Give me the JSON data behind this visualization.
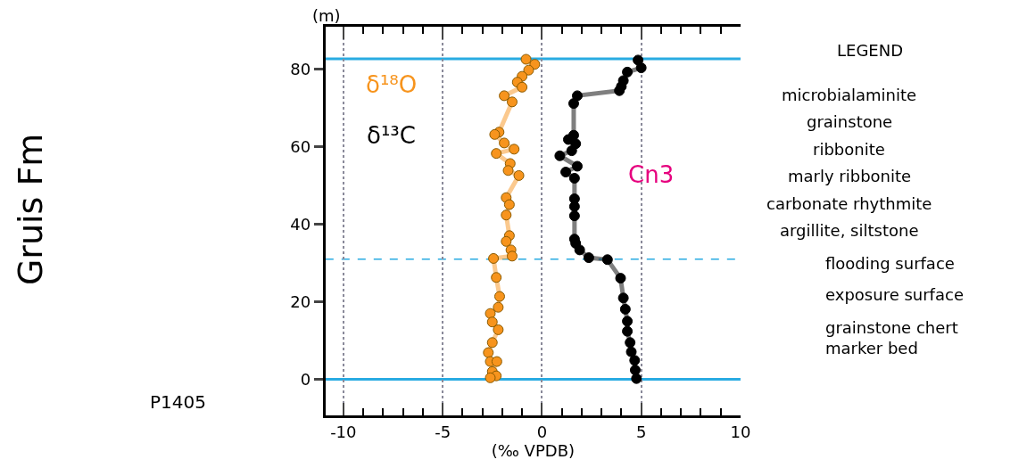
{
  "chart_data": {
    "type": "line",
    "xlabel": "(‰ VPDB)",
    "ylabel": "(m)",
    "xlim": [
      -10.9,
      10
    ],
    "ylim": [
      -9.3,
      91
    ],
    "xticks": [
      -10,
      -5,
      0,
      5,
      10
    ],
    "yticks": [
      0,
      20,
      40,
      60,
      80
    ],
    "grid": "x",
    "marker": "circle",
    "line_style": "solid",
    "series": [
      {
        "name": "δ¹⁸O",
        "color": "#f7941d",
        "x": [
          -0.8,
          -0.36,
          -0.67,
          -1.0,
          -1.24,
          -1.0,
          -1.9,
          -1.5,
          -2.16,
          -2.38,
          -1.9,
          -1.4,
          -2.3,
          -1.6,
          -1.7,
          -1.16,
          -1.8,
          -1.64,
          -1.8,
          -1.64,
          -1.8,
          -1.56,
          -1.5,
          -2.44,
          -2.3,
          -2.13,
          -2.2,
          -2.6,
          -2.5,
          -2.2,
          -2.5,
          -2.7,
          -2.6,
          -2.27,
          -2.5,
          -2.3,
          -2.6
        ],
        "values": [
          82.6,
          81.3,
          79.8,
          78.2,
          76.7,
          75.4,
          73.2,
          71.6,
          63.8,
          63.2,
          61,
          59.4,
          58.3,
          55.7,
          53.9,
          52.6,
          46.9,
          45.1,
          42.4,
          37.1,
          35.6,
          33.4,
          31.8,
          31.2,
          26.3,
          21.4,
          18.6,
          17.0,
          14.8,
          12.8,
          9.5,
          6.9,
          4.6,
          4.6,
          2.0,
          0.9,
          0.4
        ]
      },
      {
        "name": "δ¹³C",
        "color": "#000000",
        "x": [
          4.84,
          5.0,
          4.3,
          4.1,
          4.0,
          3.9,
          1.78,
          1.6,
          1.6,
          1.33,
          1.7,
          1.5,
          0.9,
          1.78,
          1.2,
          1.64,
          1.64,
          1.64,
          1.64,
          1.64,
          1.7,
          1.9,
          2.36,
          3.3,
          3.96,
          4.1,
          4.2,
          4.3,
          4.3,
          4.44,
          4.5,
          4.67,
          4.7,
          4.76
        ],
        "values": [
          82.4,
          80.4,
          79.3,
          77.1,
          75.6,
          74.5,
          73.2,
          71.2,
          63.0,
          61.9,
          60.8,
          59.0,
          57.7,
          55.0,
          53.5,
          51.9,
          46.6,
          44.6,
          42.2,
          36.2,
          35.1,
          33.4,
          31.4,
          30.9,
          26.1,
          21.0,
          18.1,
          15.0,
          12.4,
          9.5,
          7.1,
          4.9,
          2.4,
          0.2
        ]
      }
    ],
    "ref_lines": [
      {
        "axis": "y",
        "value": 0,
        "color": "#29abe2",
        "line_style": "solid"
      },
      {
        "axis": "y",
        "value": 82.7,
        "color": "#29abe2",
        "line_style": "solid"
      },
      {
        "axis": "y",
        "value": 31,
        "color": "#29abe2",
        "line_style": "dashed"
      }
    ],
    "annotations": [
      "Cn3",
      "Gruis Fm",
      "P1405",
      "LEGEND",
      "microbialaminite",
      "grainstone",
      "ribbonite",
      "marly ribbonite",
      "carbonate rhythmite",
      "argillite, siltstone",
      "flooding surface",
      "exposure surface",
      "grainstone chert marker bed"
    ]
  }
}
